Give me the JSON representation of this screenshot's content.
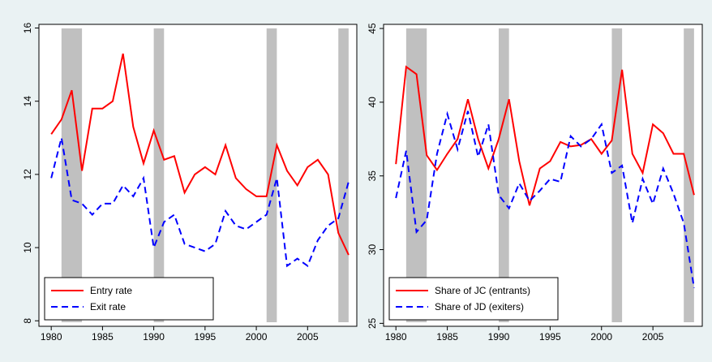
{
  "chart_data": [
    {
      "type": "line",
      "x": [
        1980,
        1981,
        1982,
        1983,
        1984,
        1985,
        1986,
        1987,
        1988,
        1989,
        1990,
        1991,
        1992,
        1993,
        1994,
        1995,
        1996,
        1997,
        1998,
        1999,
        2000,
        2001,
        2002,
        2003,
        2004,
        2005,
        2006,
        2007,
        2008,
        2009
      ],
      "series": [
        {
          "name": "Entry rate",
          "color": "#ff0000",
          "dash": "solid",
          "values": [
            13.1,
            13.5,
            14.3,
            12.1,
            13.8,
            13.8,
            14.0,
            15.3,
            13.3,
            12.3,
            13.2,
            12.4,
            12.5,
            11.5,
            12.0,
            12.2,
            12.0,
            12.8,
            11.9,
            11.6,
            11.4,
            11.4,
            12.8,
            12.1,
            11.7,
            12.2,
            12.4,
            12.0,
            10.4,
            9.8
          ]
        },
        {
          "name": "Exit rate",
          "color": "#0000ff",
          "dash": "dashed",
          "values": [
            11.9,
            13.0,
            11.3,
            11.2,
            10.9,
            11.2,
            11.2,
            11.7,
            11.4,
            11.9,
            10.0,
            10.7,
            10.9,
            10.1,
            10.0,
            9.9,
            10.1,
            11.0,
            10.6,
            10.5,
            10.7,
            10.9,
            11.9,
            9.5,
            9.7,
            9.5,
            10.2,
            10.6,
            10.8,
            11.8
          ]
        }
      ],
      "shaded": [
        [
          1981,
          1983
        ],
        [
          1990,
          1991
        ],
        [
          2001,
          2002
        ],
        [
          2008,
          2009
        ]
      ],
      "shade_color": "#c0c0c0",
      "xlim": [
        1978.8,
        2009.8
      ],
      "xticks": [
        1980,
        1985,
        1990,
        1995,
        2000,
        2005
      ],
      "ylim": [
        7.85,
        16.1
      ],
      "yticks": [
        8,
        10,
        12,
        14,
        16
      ],
      "legend": "lower left"
    },
    {
      "type": "line",
      "x": [
        1980,
        1981,
        1982,
        1983,
        1984,
        1985,
        1986,
        1987,
        1988,
        1989,
        1990,
        1991,
        1992,
        1993,
        1994,
        1995,
        1996,
        1997,
        1998,
        1999,
        2000,
        2001,
        2002,
        2003,
        2004,
        2005,
        2006,
        2007,
        2008,
        2009
      ],
      "series": [
        {
          "name": "Share of JC (entrants)",
          "color": "#ff0000",
          "dash": "solid",
          "values": [
            35.8,
            42.4,
            41.9,
            36.4,
            35.4,
            36.5,
            37.5,
            40.2,
            37.5,
            35.5,
            37.5,
            40.2,
            36.0,
            33.0,
            35.5,
            36.0,
            37.3,
            37.0,
            37.1,
            37.5,
            36.5,
            37.4,
            42.2,
            36.5,
            35.2,
            38.5,
            37.9,
            36.5,
            36.5,
            33.7
          ]
        },
        {
          "name": "Share of JD (exiters)",
          "color": "#0000ff",
          "dash": "dashed",
          "values": [
            33.5,
            36.7,
            31.2,
            32.0,
            36.5,
            39.2,
            36.8,
            39.4,
            36.3,
            38.5,
            33.7,
            32.8,
            34.5,
            33.3,
            34.0,
            34.8,
            34.6,
            37.7,
            37.0,
            37.5,
            38.5,
            35.2,
            35.7,
            31.8,
            34.8,
            33.1,
            35.5,
            33.8,
            31.8,
            27.4
          ]
        }
      ],
      "shaded": [
        [
          1981,
          1983
        ],
        [
          1990,
          1991
        ],
        [
          2001,
          2002
        ],
        [
          2008,
          2009
        ]
      ],
      "shade_color": "#c0c0c0",
      "xlim": [
        1978.8,
        2009.8
      ],
      "xticks": [
        1980,
        1985,
        1990,
        1995,
        2000,
        2005
      ],
      "ylim": [
        24.8,
        45.28
      ],
      "yticks": [
        25,
        30,
        35,
        40,
        45
      ],
      "legend": "lower left"
    }
  ]
}
